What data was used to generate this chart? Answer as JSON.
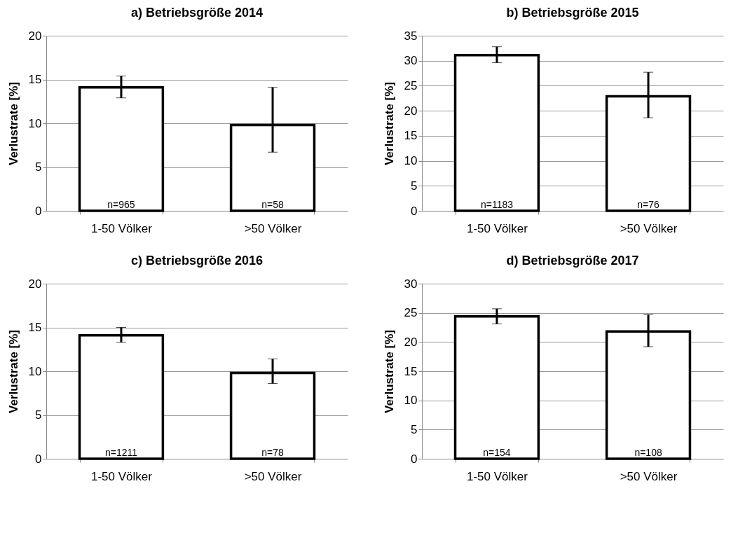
{
  "chart_data": [
    {
      "type": "bar",
      "title": "a) Betriebsgröße 2014",
      "ylabel": "Verlustrate [%]",
      "categories": [
        "1-50 Völker",
        ">50 Völker"
      ],
      "values": [
        14.1,
        9.8
      ],
      "errors": [
        [
          12.9,
          15.4
        ],
        [
          6.7,
          14.1
        ]
      ],
      "color": "#ffffff",
      "ylim": [
        0,
        20
      ],
      "yticks": [
        0,
        5,
        10,
        15,
        20
      ],
      "grid": "y",
      "annotations": [
        "n=965",
        "n=58"
      ]
    },
    {
      "type": "bar",
      "title": "b) Betriebsgröße 2015",
      "ylabel": "Verlustrate [%]",
      "categories": [
        "1-50 Völker",
        ">50 Völker"
      ],
      "values": [
        31.1,
        22.9
      ],
      "errors": [
        [
          29.6,
          32.8
        ],
        [
          18.6,
          27.7
        ]
      ],
      "color": "#ffffff",
      "ylim": [
        0,
        35
      ],
      "yticks": [
        0,
        5,
        10,
        15,
        20,
        25,
        30,
        35
      ],
      "grid": "y",
      "annotations": [
        "n=1183",
        "n=76"
      ]
    },
    {
      "type": "bar",
      "title": "c) Betriebsgröße 2016",
      "ylabel": "Verlustrate [%]",
      "categories": [
        "1-50 Völker",
        ">50 Völker"
      ],
      "values": [
        14.1,
        9.8
      ],
      "errors": [
        [
          13.3,
          15.0
        ],
        [
          8.6,
          11.4
        ]
      ],
      "color": "#ffffff",
      "ylim": [
        0,
        20
      ],
      "yticks": [
        0,
        5,
        10,
        15,
        20
      ],
      "grid": "y",
      "annotations": [
        "n=1211",
        "n=78"
      ]
    },
    {
      "type": "bar",
      "title": "d) Betriebsgröße 2017",
      "ylabel": "Verlustrate [%]",
      "categories": [
        "1-50 Völker",
        ">50 Völker"
      ],
      "values": [
        24.4,
        21.8
      ],
      "errors": [
        [
          23.1,
          25.7
        ],
        [
          19.2,
          24.7
        ]
      ],
      "color": "#ffffff",
      "ylim": [
        0,
        30
      ],
      "yticks": [
        0,
        5,
        10,
        15,
        20,
        25,
        30
      ],
      "grid": "y",
      "annotations": [
        "n=154",
        "n=108"
      ]
    }
  ]
}
